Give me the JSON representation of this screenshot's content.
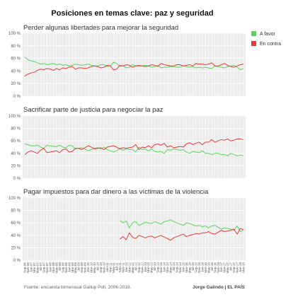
{
  "chart_data": {
    "type": "line",
    "title": "Posiciones en temas clave: paz y seguridad",
    "source": "Fuente: encuesta bimensual Gallup Poll, 2006-2018.",
    "credit": "Jorge Galindo | EL PAÍS",
    "legend": [
      {
        "name": "A favor",
        "color": "#59d659"
      },
      {
        "name": "En contra",
        "color": "#e63a3a"
      }
    ],
    "legend_position": "top-right",
    "grid": true,
    "y_ticks": [
      "100 %",
      "80 %",
      "60 %",
      "40 %",
      "20 %",
      "0 %"
    ],
    "ylim": [
      0,
      100
    ],
    "x_tick_labels": [
      "Sep-06",
      "Nov-06",
      "Jan-07",
      "Mar-07",
      "May-07",
      "Jul-07",
      "Sep-07",
      "Nov-07",
      "Jan-08",
      "Mar-08",
      "May-08",
      "Jul-08",
      "Sep-08",
      "Nov-08",
      "Jan-09",
      "Mar-09",
      "May-09",
      "Jul-09",
      "Sep-09",
      "Nov-09",
      "Jan-10",
      "Mar-10",
      "May-10",
      "Jul-10",
      "Sep-10",
      "Nov-10",
      "Jan-11",
      "Mar-11",
      "May-11",
      "Jul-11",
      "Sep-11",
      "Nov-11",
      "Jan-12",
      "Mar-12",
      "May-12",
      "Jul-12",
      "Sep-12",
      "Nov-12",
      "Jan-13",
      "Mar-13",
      "May-13",
      "Jul-13",
      "Sep-13",
      "Nov-13",
      "Jan-14",
      "Mar-14",
      "May-14",
      "Jul-14",
      "Sep-14",
      "Nov-14",
      "Jan-15",
      "Mar-15",
      "May-15",
      "Jul-15",
      "Sep-15",
      "Nov-15",
      "Jan-16",
      "Mar-16",
      "May-16",
      "Jul-16",
      "Sep-16",
      "Nov-16",
      "Jan-17",
      "Mar-17",
      "May-17",
      "Jul-17",
      "Sep-17",
      "Nov-17",
      "Jan-18",
      "Mar-18"
    ],
    "panels": [
      {
        "title": "Perder algunas libertades para mejorar la seguridad",
        "series": [
          {
            "name": "A favor",
            "start": 0,
            "values": [
              62,
              58,
              56,
              55,
              53,
              51,
              52,
              50,
              51,
              52,
              50,
              51,
              49,
              50,
              48,
              49,
              51,
              50,
              49,
              50,
              51,
              49,
              48,
              48,
              50,
              50,
              47,
              48,
              54,
              52,
              47,
              48,
              45,
              46,
              50,
              48,
              47,
              48,
              49,
              48,
              46,
              47,
              49,
              45,
              46,
              46,
              47,
              47,
              46,
              46,
              48,
              47,
              46,
              47,
              45,
              46,
              45,
              46,
              45,
              44,
              48,
              47,
              46,
              45,
              47,
              48,
              49,
              46,
              42,
              44
            ]
          },
          {
            "name": "En contra",
            "start": 0,
            "values": [
              32,
              35,
              37,
              38,
              41,
              43,
              42,
              44,
              43,
              41,
              44,
              42,
              45,
              44,
              46,
              47,
              43,
              45,
              45,
              44,
              45,
              47,
              48,
              47,
              45,
              46,
              49,
              48,
              42,
              43,
              49,
              48,
              50,
              49,
              46,
              48,
              49,
              48,
              47,
              48,
              50,
              49,
              47,
              52,
              50,
              49,
              48,
              48,
              50,
              50,
              48,
              49,
              50,
              48,
              52,
              51,
              51,
              50,
              51,
              53,
              48,
              48,
              50,
              52,
              49,
              47,
              46,
              48,
              50,
              51
            ]
          }
        ]
      },
      {
        "title": "Sacrificar parte de justicia para negociar la paz",
        "series": [
          {
            "name": "A favor",
            "start": 0,
            "values": [
              55,
              54,
              52,
              52,
              53,
              50,
              48,
              53,
              52,
              51,
              51,
              53,
              50,
              49,
              53,
              52,
              47,
              48,
              49,
              47,
              44,
              46,
              48,
              49,
              47,
              50,
              46,
              44,
              42,
              44,
              48,
              45,
              47,
              46,
              46,
              42,
              50,
              46,
              47,
              44,
              47,
              43,
              42,
              43,
              40,
              46,
              45,
              47,
              46,
              45,
              46,
              42,
              40,
              43,
              42,
              41,
              44,
              40,
              40,
              38,
              40,
              40,
              38,
              38,
              36,
              40,
              38,
              36,
              37,
              36
            ]
          },
          {
            "name": "En contra",
            "start": 0,
            "values": [
              38,
              42,
              44,
              42,
              40,
              45,
              48,
              41,
              42,
              43,
              44,
              41,
              46,
              47,
              42,
              43,
              48,
              48,
              46,
              49,
              52,
              50,
              47,
              48,
              49,
              46,
              50,
              51,
              52,
              50,
              47,
              49,
              48,
              49,
              50,
              54,
              46,
              50,
              49,
              52,
              49,
              54,
              55,
              53,
              56,
              50,
              52,
              49,
              50,
              51,
              50,
              55,
              57,
              54,
              56,
              58,
              54,
              58,
              58,
              62,
              58,
              60,
              62,
              61,
              63,
              60,
              61,
              63,
              63,
              62
            ]
          }
        ]
      },
      {
        "title": "Pagar impuestos para dar dinero a las víctimas de la violencia",
        "series": [
          {
            "name": "A favor",
            "start": 30,
            "values": [
              64,
              60,
              63,
              52,
              60,
              62,
              56,
              58,
              61,
              60,
              59,
              62,
              60,
              58,
              62,
              63,
              65,
              62,
              60,
              58,
              56,
              60,
              59,
              57,
              55,
              56,
              54,
              55,
              52,
              55,
              56,
              53,
              50,
              52,
              51,
              50,
              48,
              55,
              46,
              49
            ]
          },
          {
            "name": "En contra",
            "start": 30,
            "values": [
              34,
              38,
              33,
              44,
              37,
              35,
              40,
              38,
              36,
              38,
              39,
              36,
              38,
              40,
              37,
              35,
              32,
              36,
              38,
              40,
              42,
              38,
              40,
              41,
              43,
              42,
              44,
              44,
              46,
              43,
              42,
              45,
              48,
              46,
              47,
              48,
              50,
              42,
              51,
              49
            ]
          }
        ]
      }
    ]
  }
}
